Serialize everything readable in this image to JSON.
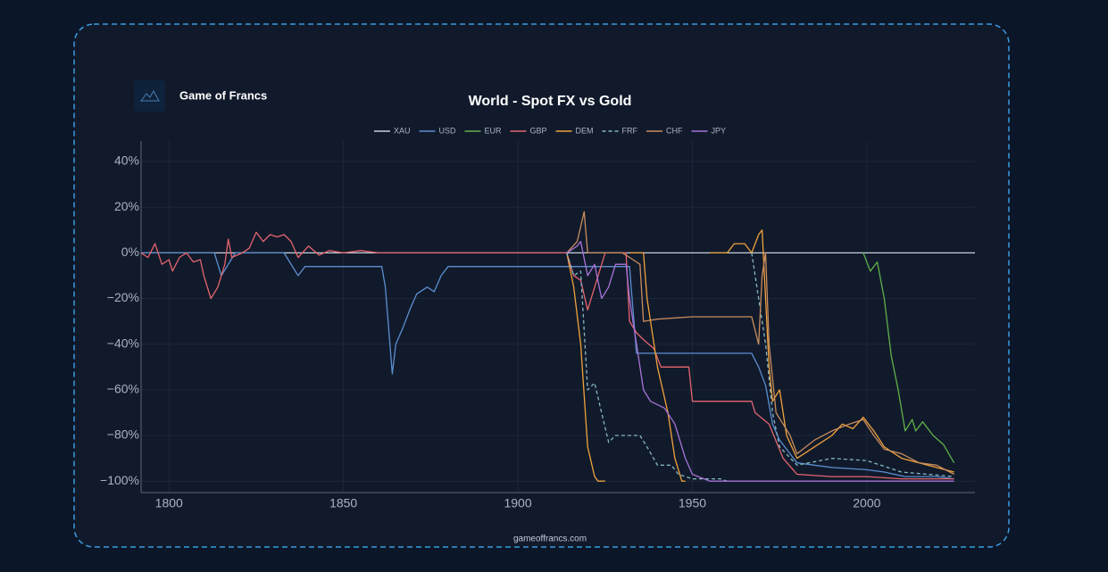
{
  "brand": "Game of Francs",
  "footer": "gameoffrancs.com",
  "chart_data": {
    "type": "line",
    "title": "World - Spot FX vs Gold",
    "xlim": [
      1792,
      2031
    ],
    "ylim": [
      -105,
      49
    ],
    "xticks": [
      1800,
      1850,
      1900,
      1950,
      2000
    ],
    "yticks": [
      {
        "value": -100,
        "label": "−100%"
      },
      {
        "value": -80,
        "label": "−80%"
      },
      {
        "value": -60,
        "label": "−60%"
      },
      {
        "value": -40,
        "label": "−40%"
      },
      {
        "value": -20,
        "label": "−20%"
      },
      {
        "value": 0,
        "label": "0%"
      },
      {
        "value": 20,
        "label": "20%"
      },
      {
        "value": 40,
        "label": "40%"
      }
    ],
    "grid": true,
    "legend": "top",
    "series": [
      {
        "name": "XAU",
        "color": "#c8d0da",
        "x": [
          1792,
          2031
        ],
        "values": [
          0,
          0
        ]
      },
      {
        "name": "USD",
        "color": "#5b8fd0",
        "x": [
          1792,
          1813,
          1815,
          1817,
          1819,
          1833,
          1835,
          1837,
          1839,
          1861,
          1862,
          1864,
          1865,
          1867,
          1869,
          1871,
          1874,
          1876,
          1878,
          1880,
          1932,
          1934,
          1967,
          1969,
          1971,
          1973,
          1975,
          1978,
          1980,
          1985,
          1990,
          2000,
          2005,
          2011,
          2020,
          2025
        ],
        "values": [
          0,
          0,
          -10,
          -5,
          0,
          0,
          -5,
          -10,
          -6,
          -6,
          -15,
          -53,
          -40,
          -33,
          -25,
          -18,
          -15,
          -17,
          -10,
          -6,
          -6,
          -44,
          -44,
          -50,
          -58,
          -75,
          -82,
          -88,
          -92,
          -93,
          -94,
          -95,
          -96,
          -98,
          -98,
          -99
        ]
      },
      {
        "name": "EUR",
        "color": "#5fb04a",
        "x": [
          1999,
          2001,
          2003,
          2005,
          2007,
          2009,
          2011,
          2013,
          2014,
          2016,
          2019,
          2022,
          2025
        ],
        "values": [
          0,
          -8,
          -4,
          -20,
          -45,
          -60,
          -78,
          -73,
          -78,
          -74,
          -80,
          -84,
          -92
        ]
      },
      {
        "name": "GBP",
        "color": "#e5646e",
        "x": [
          1792,
          1794,
          1796,
          1798,
          1800,
          1801,
          1803,
          1805,
          1807,
          1809,
          1810,
          1812,
          1814,
          1816,
          1817,
          1818,
          1821,
          1823,
          1825,
          1827,
          1829,
          1831,
          1833,
          1835,
          1837,
          1840,
          1843,
          1846,
          1850,
          1855,
          1860,
          1914,
          1916,
          1918,
          1920,
          1922,
          1925,
          1931,
          1932,
          1934,
          1936,
          1939,
          1941,
          1949,
          1950,
          1967,
          1968,
          1972,
          1976,
          1980,
          1990,
          2000,
          2010,
          2025
        ],
        "values": [
          0,
          -2,
          4,
          -5,
          -3,
          -8,
          -2,
          0,
          -4,
          -3,
          -10,
          -20,
          -15,
          -5,
          6,
          -2,
          0,
          2,
          9,
          5,
          8,
          7,
          8,
          5,
          -2,
          3,
          -1,
          1,
          0,
          1,
          0,
          0,
          -10,
          -12,
          -25,
          -15,
          0,
          0,
          -30,
          -35,
          -38,
          -42,
          -50,
          -50,
          -65,
          -65,
          -70,
          -75,
          -90,
          -97,
          -98,
          -98,
          -99,
          -99
        ]
      },
      {
        "name": "DEM",
        "color": "#f0a23c",
        "x": [
          1914,
          1916,
          1918,
          1920,
          1922,
          1923,
          1925,
          1928,
          1932,
          1934,
          1936,
          1937,
          1940,
          1943,
          1945,
          1947,
          1948,
          1952,
          1955,
          1960,
          1962,
          1965,
          1967,
          1969,
          1970,
          1971,
          1972,
          1973,
          1975,
          1977,
          1980,
          1985,
          1990,
          1993,
          1996,
          1999,
          2002,
          2005,
          2010,
          2015,
          2020,
          2025
        ],
        "values": [
          0,
          -15,
          -40,
          -85,
          -98,
          -100,
          -100,
          null,
          0,
          0,
          0,
          -20,
          -50,
          -70,
          -90,
          -100,
          -100,
          null,
          0,
          0,
          4,
          4,
          0,
          8,
          10,
          -20,
          -50,
          -65,
          -60,
          -80,
          -90,
          -85,
          -80,
          -75,
          -77,
          -72,
          -78,
          -85,
          -90,
          -92,
          -94,
          -96
        ]
      },
      {
        "name": "FRF",
        "color": "#86b7c4",
        "dash": true,
        "x": [
          1914,
          1916,
          1918,
          1920,
          1922,
          1924,
          1926,
          1928,
          1935,
          1937,
          1940,
          1944,
          1946,
          1950,
          1958,
          1960,
          1963,
          1967,
          1969,
          1971,
          1973,
          1975,
          1980,
          1990,
          2000,
          2010,
          2025
        ],
        "values": [
          0,
          -10,
          -8,
          -60,
          -57,
          -70,
          -83,
          -80,
          -80,
          -85,
          -93,
          -93,
          -97,
          -99,
          -99,
          -100,
          null,
          0,
          -20,
          -40,
          -70,
          -85,
          -93,
          -90,
          -91,
          -96,
          -98
        ]
      },
      {
        "name": "CHF",
        "color": "#c98d5e",
        "x": [
          1914,
          1917,
          1919,
          1920,
          1930,
          1933,
          1935,
          1936,
          1940,
          1950,
          1967,
          1969,
          1970,
          1971,
          1972,
          1974,
          1976,
          1978,
          1980,
          1985,
          1990,
          1995,
          1999,
          2002,
          2005,
          2010,
          2015,
          2020,
          2025
        ],
        "values": [
          0,
          5,
          18,
          0,
          0,
          -3,
          -5,
          -30,
          -29,
          -28,
          -28,
          -40,
          -10,
          0,
          -40,
          -70,
          -75,
          -80,
          -88,
          -82,
          -78,
          -75,
          -73,
          -80,
          -86,
          -88,
          -92,
          -93,
          -97
        ]
      },
      {
        "name": "JPY",
        "color": "#a873d8",
        "x": [
          1914,
          1917,
          1918,
          1920,
          1922,
          1924,
          1926,
          1928,
          1931,
          1932,
          1934,
          1936,
          1938,
          1942,
          1945,
          1948,
          1950,
          1955,
          2025
        ],
        "values": [
          0,
          3,
          5,
          -10,
          -5,
          -20,
          -15,
          -5,
          -5,
          -20,
          -40,
          -60,
          -65,
          -68,
          -75,
          -90,
          -97,
          -100,
          -100
        ]
      }
    ]
  }
}
